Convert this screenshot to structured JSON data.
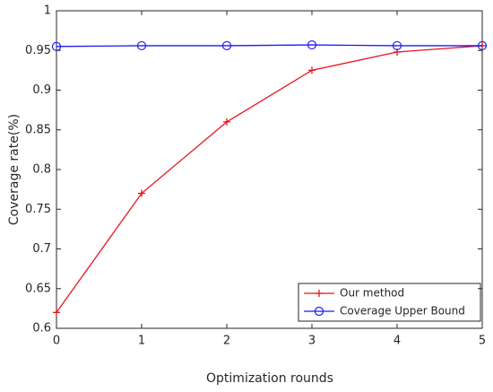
{
  "chart_data": {
    "type": "line",
    "xlabel": "Optimization rounds",
    "ylabel": "Coverage rate(%)",
    "x": [
      0,
      1,
      2,
      3,
      4,
      5
    ],
    "series": [
      {
        "name": "Our method",
        "color": "#e8141c",
        "marker": "plus",
        "values": [
          0.62,
          0.77,
          0.86,
          0.925,
          0.948,
          0.956
        ]
      },
      {
        "name": "Coverage Upper Bound",
        "color": "#1a1af0",
        "marker": "circle",
        "values": [
          0.955,
          0.956,
          0.956,
          0.957,
          0.956,
          0.956
        ]
      }
    ],
    "xlim": [
      0,
      5
    ],
    "xticks": [
      0,
      1,
      2,
      3,
      4,
      5
    ],
    "ylim": [
      0.6,
      1
    ],
    "yticks": [
      0.6,
      0.65,
      0.7,
      0.75,
      0.8,
      0.85,
      0.9,
      0.95,
      1
    ],
    "legend": "lower right",
    "grid": false
  }
}
